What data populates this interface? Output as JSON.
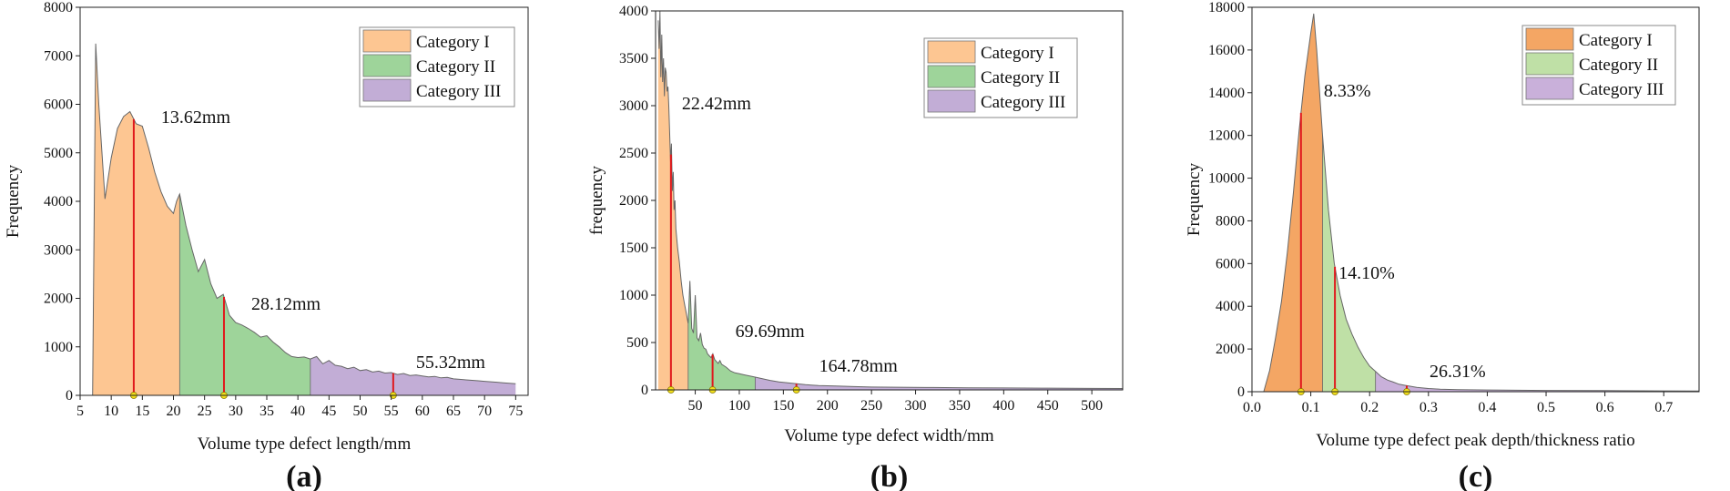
{
  "chart_data": [
    {
      "type": "area",
      "panel": "(a)",
      "xlabel": "Volume type defect length/mm",
      "ylabel": "Frequency",
      "xlim": [
        5,
        77
      ],
      "ylim": [
        0,
        8000
      ],
      "xticks": [
        5,
        10,
        15,
        20,
        25,
        30,
        35,
        40,
        45,
        50,
        55,
        60,
        65,
        70,
        75
      ],
      "yticks": [
        0,
        1000,
        2000,
        3000,
        4000,
        5000,
        6000,
        7000,
        8000
      ],
      "legend": [
        "Category I",
        "Category II",
        "Category III"
      ],
      "legend_position": "top-right",
      "colors": [
        "#FDC692",
        "#9ED49A",
        "#C2ADD6"
      ],
      "outline_color": "#666666",
      "marker_line_color": "#E0191D",
      "marker_dot_color": "#F2E01A",
      "category_bounds": [
        7,
        21,
        42,
        75
      ],
      "x": [
        7,
        7.5,
        8,
        9,
        10,
        11,
        12,
        13,
        14,
        15,
        16,
        17,
        18,
        19,
        20,
        20.5,
        21,
        22,
        23,
        24,
        25,
        26,
        27,
        28,
        29,
        30,
        31,
        32,
        33,
        34,
        35,
        36,
        37,
        38,
        39,
        40,
        41,
        42,
        43,
        44,
        45,
        46,
        47,
        48,
        49,
        50,
        51,
        52,
        53,
        54,
        55,
        56,
        57,
        58,
        59,
        60,
        61,
        62,
        63,
        64,
        65,
        66,
        67,
        68,
        69,
        70,
        71,
        72,
        73,
        74,
        75
      ],
      "y": [
        0,
        7250,
        6000,
        4050,
        4900,
        5500,
        5750,
        5850,
        5600,
        5550,
        5100,
        4600,
        4200,
        3900,
        3750,
        4000,
        4150,
        3500,
        3000,
        2550,
        2800,
        2300,
        2000,
        2080,
        1650,
        1500,
        1450,
        1380,
        1300,
        1200,
        1230,
        1100,
        1000,
        880,
        800,
        780,
        790,
        750,
        800,
        650,
        720,
        620,
        600,
        550,
        580,
        510,
        530,
        480,
        500,
        460,
        470,
        430,
        450,
        410,
        420,
        400,
        380,
        390,
        360,
        370,
        340,
        330,
        320,
        310,
        300,
        290,
        280,
        270,
        260,
        250,
        240
      ],
      "markers": [
        {
          "x": 13.62,
          "label": "13.62mm"
        },
        {
          "x": 28.12,
          "label": "28.12mm"
        },
        {
          "x": 55.32,
          "label": "55.32mm"
        }
      ]
    },
    {
      "type": "area",
      "panel": "(b)",
      "xlabel": "Volume type defect width/mm",
      "ylabel": "frequency",
      "xlim": [
        5,
        535
      ],
      "ylim": [
        0,
        4000
      ],
      "xticks": [
        50,
        100,
        150,
        200,
        250,
        300,
        350,
        400,
        450,
        500
      ],
      "yticks": [
        0,
        500,
        1000,
        1500,
        2000,
        2500,
        3000,
        3500,
        4000
      ],
      "legend": [
        "Category I",
        "Category II",
        "Category III"
      ],
      "legend_position": "top-right",
      "colors": [
        "#FDC692",
        "#9ED49A",
        "#C2ADD6"
      ],
      "outline_color": "#666666",
      "marker_line_color": "#E0191D",
      "marker_dot_color": "#F2E01A",
      "category_bounds": [
        8,
        42,
        118,
        535
      ],
      "x": [
        8,
        9,
        10,
        11,
        12,
        13,
        14,
        15,
        16,
        17,
        18,
        19,
        20,
        21,
        22,
        23,
        24,
        25,
        26,
        27,
        28,
        30,
        32,
        34,
        36,
        38,
        40,
        42,
        44,
        46,
        48,
        50,
        52,
        54,
        56,
        58,
        60,
        62,
        64,
        66,
        68,
        70,
        72,
        74,
        76,
        78,
        80,
        85,
        90,
        95,
        100,
        105,
        110,
        115,
        118,
        125,
        135,
        145,
        155,
        165,
        175,
        190,
        210,
        230,
        250,
        280,
        320,
        360,
        400,
        450,
        500,
        535
      ],
      "y": [
        3900,
        3600,
        4000,
        3300,
        3750,
        3250,
        3500,
        3100,
        3400,
        3350,
        3150,
        3200,
        3000,
        2700,
        2400,
        2600,
        2100,
        2300,
        1900,
        2000,
        1700,
        1500,
        1350,
        1150,
        1000,
        900,
        800,
        700,
        1150,
        650,
        600,
        1000,
        550,
        520,
        600,
        480,
        440,
        430,
        380,
        360,
        340,
        380,
        320,
        300,
        280,
        310,
        270,
        240,
        200,
        180,
        170,
        160,
        150,
        140,
        135,
        120,
        100,
        85,
        75,
        65,
        55,
        45,
        40,
        35,
        30,
        28,
        25,
        22,
        20,
        18,
        15,
        14
      ],
      "markers": [
        {
          "x": 22.42,
          "label": "22.42mm"
        },
        {
          "x": 69.69,
          "label": "69.69mm"
        },
        {
          "x": 164.78,
          "label": "164.78mm"
        }
      ]
    },
    {
      "type": "area",
      "panel": "(c)",
      "xlabel": "Volume type defect peak depth/thickness ratio",
      "ylabel": "Frequency",
      "xlim": [
        0,
        0.76
      ],
      "ylim": [
        0,
        18000
      ],
      "xticks": [
        0.0,
        0.1,
        0.2,
        0.3,
        0.4,
        0.5,
        0.6,
        0.7
      ],
      "yticks": [
        0,
        2000,
        4000,
        6000,
        8000,
        10000,
        12000,
        14000,
        16000,
        18000
      ],
      "legend": [
        "Category I",
        "Category II",
        "Category III"
      ],
      "legend_position": "top-right",
      "colors": [
        "#F4A664",
        "#BFE0A6",
        "#C9B0DA"
      ],
      "outline_color": "#666666",
      "marker_line_color": "#E0191D",
      "marker_dot_color": "#F2E01A",
      "category_bounds": [
        0.02,
        0.12,
        0.21,
        0.76
      ],
      "x": [
        0.02,
        0.03,
        0.04,
        0.05,
        0.06,
        0.07,
        0.08,
        0.09,
        0.1,
        0.105,
        0.11,
        0.12,
        0.13,
        0.14,
        0.15,
        0.16,
        0.17,
        0.18,
        0.19,
        0.2,
        0.21,
        0.22,
        0.23,
        0.24,
        0.25,
        0.26,
        0.27,
        0.28,
        0.3,
        0.32,
        0.35,
        0.4,
        0.45,
        0.5,
        0.6,
        0.7,
        0.76
      ],
      "y": [
        0,
        1000,
        2500,
        4200,
        6500,
        9200,
        12200,
        14800,
        16800,
        17700,
        16000,
        12000,
        8500,
        6000,
        4500,
        3400,
        2700,
        2100,
        1600,
        1200,
        950,
        700,
        550,
        450,
        350,
        300,
        250,
        200,
        150,
        120,
        100,
        80,
        70,
        60,
        50,
        40,
        30
      ],
      "markers": [
        {
          "x": 0.0833,
          "label": "8.33%"
        },
        {
          "x": 0.141,
          "label": "14.10%"
        },
        {
          "x": 0.2631,
          "label": "26.31%"
        }
      ]
    }
  ]
}
